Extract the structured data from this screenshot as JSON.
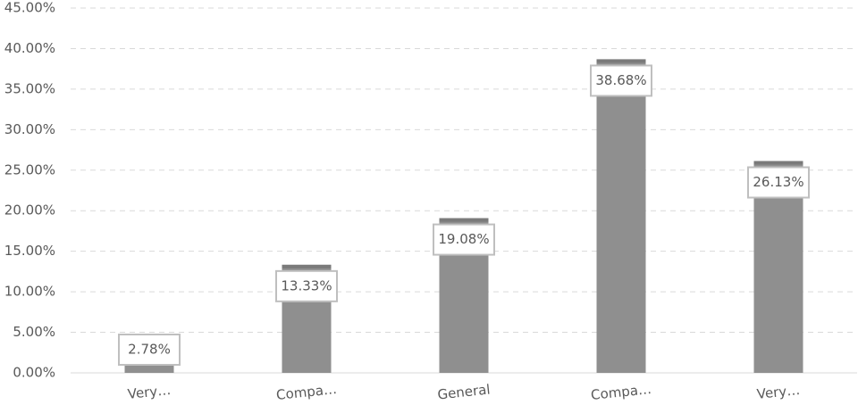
{
  "chart_data": {
    "type": "bar",
    "categories": [
      "Very…",
      "Compa…",
      "General",
      "Compa…",
      "Very…"
    ],
    "values": [
      2.78,
      13.33,
      19.08,
      38.68,
      26.13
    ],
    "value_labels": [
      "2.78%",
      "13.33%",
      "19.08%",
      "38.68%",
      "26.13%"
    ],
    "color": "#8f8f8f",
    "ylim": [
      0,
      45
    ],
    "yticks": [
      {
        "value": 0,
        "label": "0.00%"
      },
      {
        "value": 5,
        "label": "5.00%"
      },
      {
        "value": 10,
        "label": "10.00%"
      },
      {
        "value": 15,
        "label": "15.00%"
      },
      {
        "value": 20,
        "label": "20.00%"
      },
      {
        "value": 25,
        "label": "25.00%"
      },
      {
        "value": 30,
        "label": "30.00%"
      },
      {
        "value": 35,
        "label": "35.00%"
      },
      {
        "value": 40,
        "label": "40.00%"
      },
      {
        "value": 45,
        "label": "45.00%"
      }
    ],
    "grid": true
  }
}
